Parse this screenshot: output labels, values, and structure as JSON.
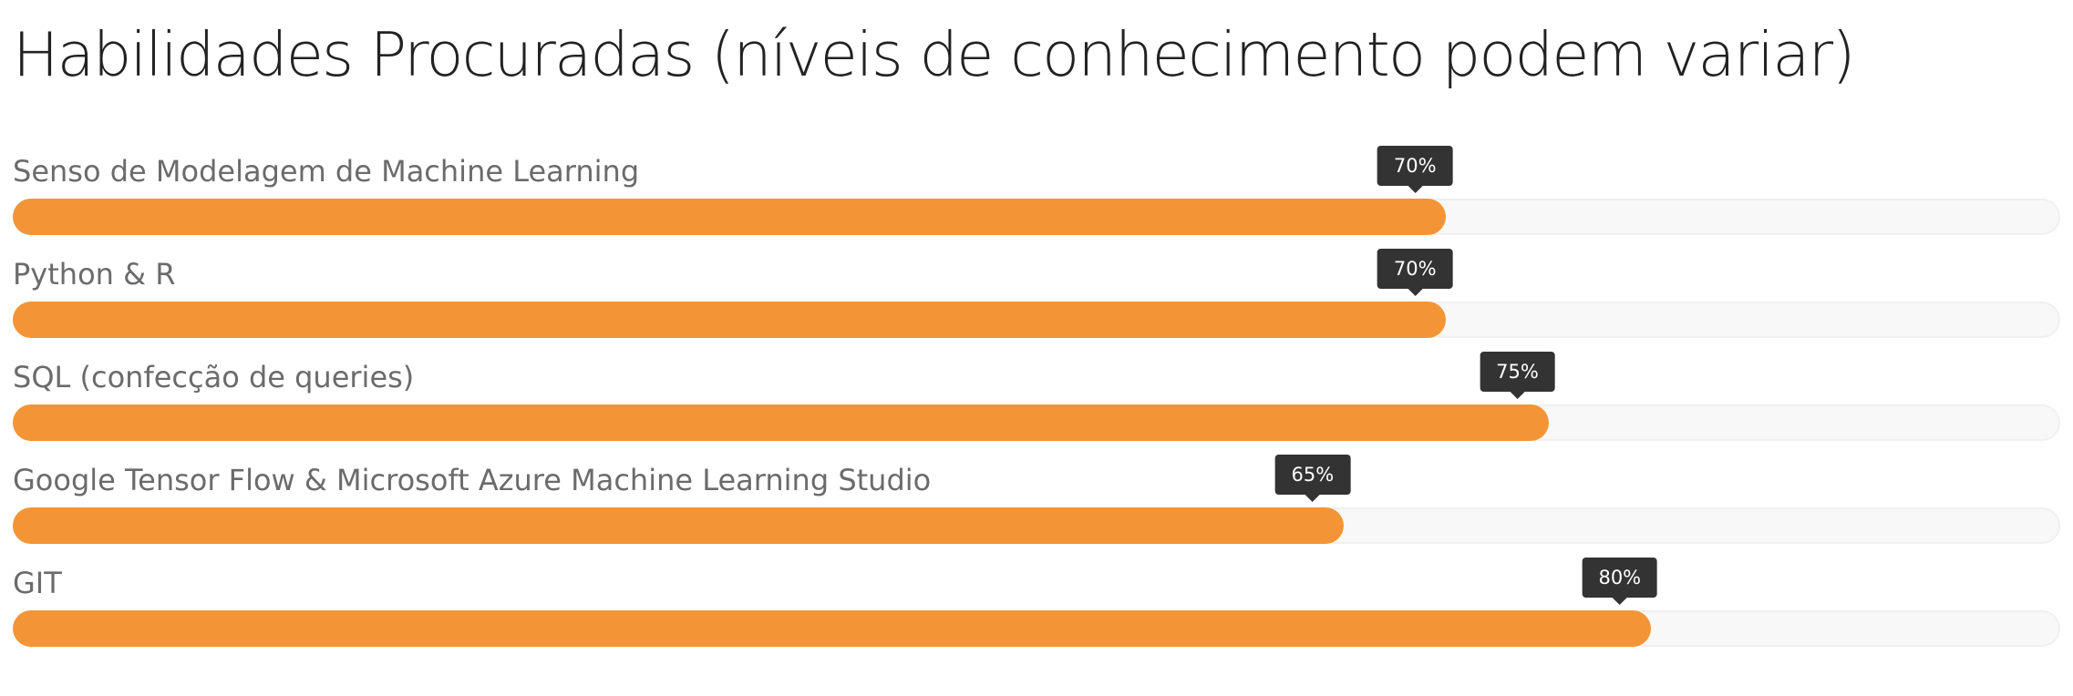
{
  "title": "Habilidades Procuradas (níveis de conhecimento podem variar)",
  "colors": {
    "fill": "#f39536",
    "track": "#f8f8f8",
    "tooltip": "#333333",
    "label": "#6b6b6b"
  },
  "chart_data": {
    "type": "bar",
    "orientation": "horizontal",
    "title": "Habilidades Procuradas (níveis de conhecimento podem variar)",
    "categories": [
      "Senso de Modelagem de Machine Learning",
      "Python & R",
      "SQL (confecção de queries)",
      "Google Tensor Flow & Microsoft Azure Machine Learning Studio",
      "GIT"
    ],
    "values": [
      70,
      70,
      75,
      65,
      80
    ],
    "value_labels": [
      "70%",
      "70%",
      "75%",
      "65%",
      "80%"
    ],
    "xlim": [
      0,
      100
    ],
    "grid": false,
    "legend": "none"
  }
}
